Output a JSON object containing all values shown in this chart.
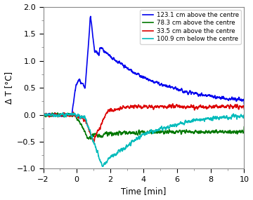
{
  "title": "",
  "xlabel": "Time [min]",
  "ylabel": "Δ T [°C]",
  "xlim": [
    -2,
    10
  ],
  "ylim": [
    -1,
    2
  ],
  "yticks": [
    -1,
    -0.5,
    0,
    0.5,
    1,
    1.5,
    2
  ],
  "xticks": [
    -2,
    0,
    2,
    4,
    6,
    8,
    10
  ],
  "legend": [
    "123.1 cm above the centre",
    "78.3 cm above the centre",
    "33.5 cm above the centre",
    "100.9 cm below the centre"
  ],
  "colors": [
    "#0000EE",
    "#007700",
    "#DD0000",
    "#00BBBB"
  ],
  "background_color": "#ffffff",
  "seed": 7
}
